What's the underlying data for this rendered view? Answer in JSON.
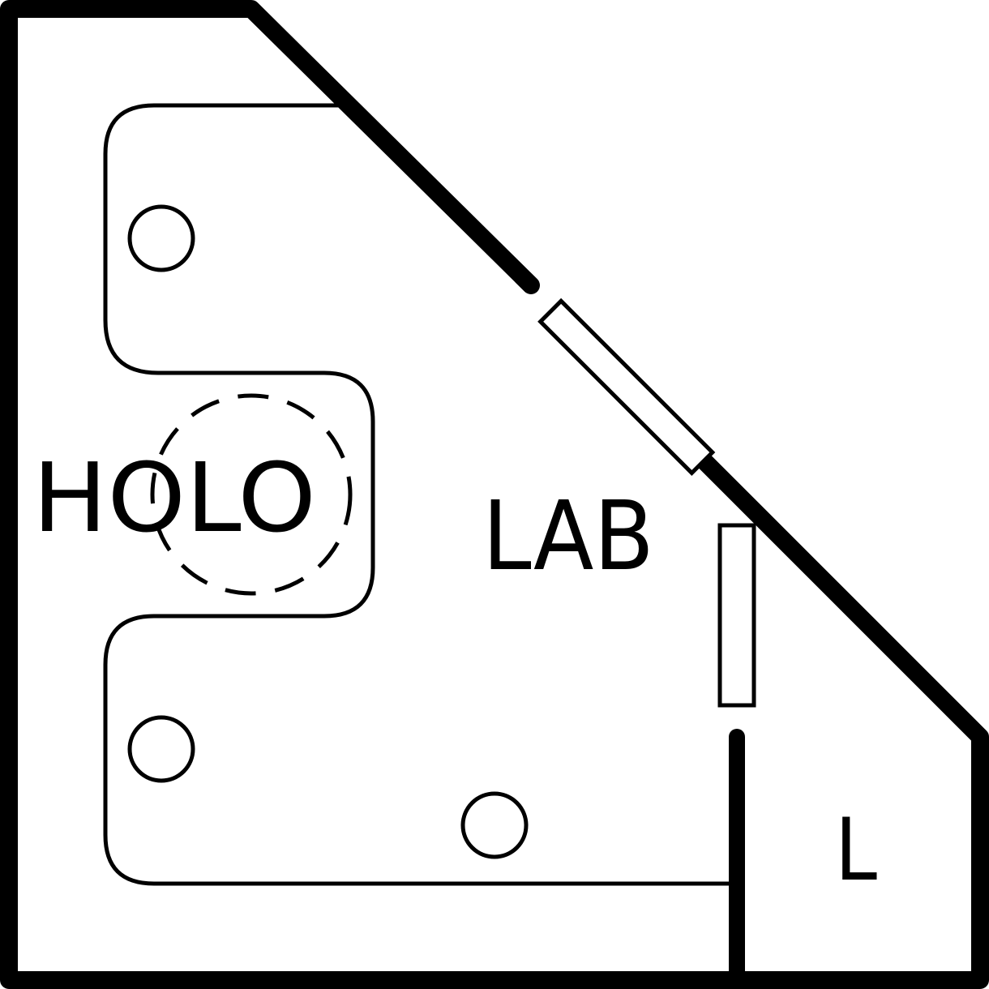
{
  "plan": {
    "rooms": {
      "holo": {
        "label": "HOLO"
      },
      "lab": {
        "label": "LAB"
      },
      "l": {
        "label": "L"
      }
    },
    "colors": {
      "ink": "#000000",
      "background": "#ffffff"
    }
  }
}
